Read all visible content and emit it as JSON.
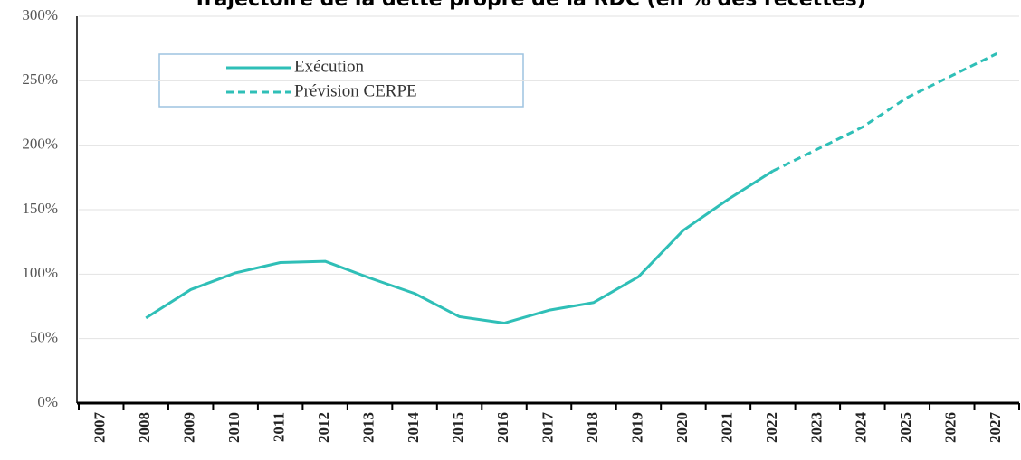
{
  "chart_data": {
    "type": "line",
    "title": "Trajectoire de la dette propre de la RDC (en % des recettes)",
    "categories": [
      "2007",
      "2008",
      "2009",
      "2010",
      "2011",
      "2012",
      "2013",
      "2014",
      "2015",
      "2016",
      "2017",
      "2018",
      "2019",
      "2020",
      "2021",
      "2022",
      "2023",
      "2024",
      "2025",
      "2026",
      "2027"
    ],
    "series": [
      {
        "name": "Exécution",
        "color": "#2fbfb7",
        "style": "solid",
        "values": [
          null,
          66,
          88,
          101,
          109,
          110,
          97,
          85,
          67,
          62,
          72,
          78,
          98,
          134,
          158,
          180,
          null,
          null,
          null,
          null,
          null
        ]
      },
      {
        "name": "Prévision CERPE",
        "color": "#2fbfb7",
        "style": "dashed",
        "values": [
          null,
          null,
          null,
          null,
          null,
          null,
          null,
          null,
          null,
          null,
          null,
          null,
          null,
          null,
          null,
          180,
          197,
          214,
          237,
          254,
          271
        ]
      }
    ],
    "ylim": [
      0,
      300
    ],
    "yticks": [
      {
        "value": 0,
        "label": "0%"
      },
      {
        "value": 50,
        "label": "50%"
      },
      {
        "value": 100,
        "label": "100%"
      },
      {
        "value": 150,
        "label": "150%"
      },
      {
        "value": 200,
        "label": "200%"
      },
      {
        "value": 250,
        "label": "250%"
      },
      {
        "value": 300,
        "label": "300%"
      }
    ],
    "grid": true,
    "legend": "upper left"
  }
}
